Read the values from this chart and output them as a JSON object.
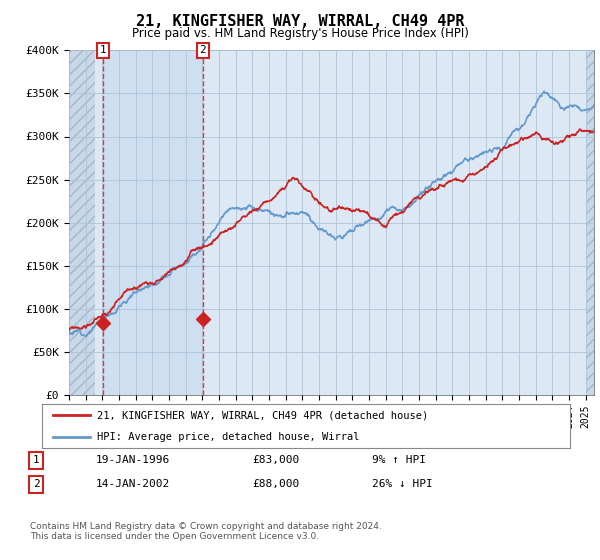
{
  "title": "21, KINGFISHER WAY, WIRRAL, CH49 4PR",
  "subtitle": "Price paid vs. HM Land Registry's House Price Index (HPI)",
  "ylim": [
    0,
    400000
  ],
  "yticks": [
    0,
    50000,
    100000,
    150000,
    200000,
    250000,
    300000,
    350000,
    400000
  ],
  "ytick_labels": [
    "£0",
    "£50K",
    "£100K",
    "£150K",
    "£200K",
    "£250K",
    "£300K",
    "£350K",
    "£400K"
  ],
  "line1_color": "#cc2222",
  "line2_color": "#6699cc",
  "purchase1_year": 1996.05,
  "purchase1_price": 83000,
  "purchase2_year": 2002.04,
  "purchase2_price": 88000,
  "legend_label1": "21, KINGFISHER WAY, WIRRAL, CH49 4PR (detached house)",
  "legend_label2": "HPI: Average price, detached house, Wirral",
  "transaction1_date": "19-JAN-1996",
  "transaction1_price": "£83,000",
  "transaction1_hpi": "9% ↑ HPI",
  "transaction2_date": "14-JAN-2002",
  "transaction2_price": "£88,000",
  "transaction2_hpi": "26% ↓ HPI",
  "footnote": "Contains HM Land Registry data © Crown copyright and database right 2024.\nThis data is licensed under the Open Government Licence v3.0.",
  "bg_color": "#dce9f5",
  "hatch_facecolor": "#c8d8e8",
  "grid_color": "#b0c4d8",
  "xmin": 1994,
  "xmax": 2025.5
}
